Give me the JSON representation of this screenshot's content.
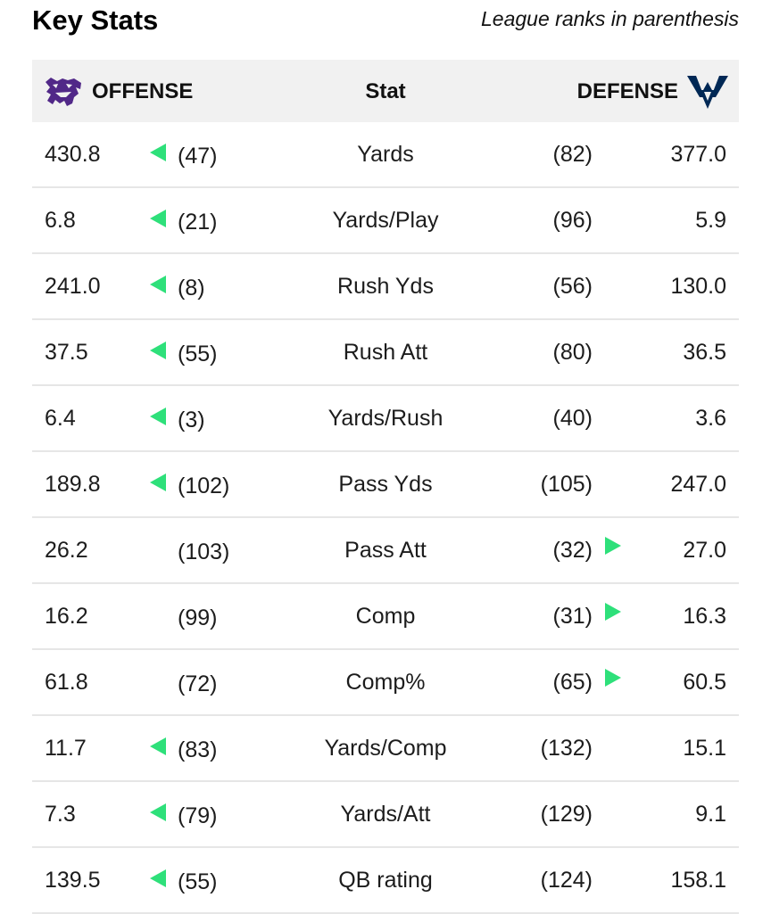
{
  "header": {
    "title": "Key Stats",
    "note": "League ranks in parenthesis"
  },
  "columns": {
    "offense": "OFFENSE",
    "stat": "Stat",
    "defense": "DEFENSE"
  },
  "colors": {
    "accent_arrow": "#2ee07a",
    "offense_brand": "#512888",
    "defense_brand": "#002855",
    "header_bg": "#f1f1f1"
  },
  "rows": [
    {
      "offense_value": "430.8",
      "offense_rank": "(47)",
      "stat": "Yards",
      "defense_rank": "(82)",
      "defense_value": "377.0",
      "advantage": "offense"
    },
    {
      "offense_value": "6.8",
      "offense_rank": "(21)",
      "stat": "Yards/Play",
      "defense_rank": "(96)",
      "defense_value": "5.9",
      "advantage": "offense"
    },
    {
      "offense_value": "241.0",
      "offense_rank": "(8)",
      "stat": "Rush Yds",
      "defense_rank": "(56)",
      "defense_value": "130.0",
      "advantage": "offense"
    },
    {
      "offense_value": "37.5",
      "offense_rank": "(55)",
      "stat": "Rush Att",
      "defense_rank": "(80)",
      "defense_value": "36.5",
      "advantage": "offense"
    },
    {
      "offense_value": "6.4",
      "offense_rank": "(3)",
      "stat": "Yards/Rush",
      "defense_rank": "(40)",
      "defense_value": "3.6",
      "advantage": "offense"
    },
    {
      "offense_value": "189.8",
      "offense_rank": "(102)",
      "stat": "Pass Yds",
      "defense_rank": "(105)",
      "defense_value": "247.0",
      "advantage": "offense"
    },
    {
      "offense_value": "26.2",
      "offense_rank": "(103)",
      "stat": "Pass Att",
      "defense_rank": "(32)",
      "defense_value": "27.0",
      "advantage": "defense"
    },
    {
      "offense_value": "16.2",
      "offense_rank": "(99)",
      "stat": "Comp",
      "defense_rank": "(31)",
      "defense_value": "16.3",
      "advantage": "defense"
    },
    {
      "offense_value": "61.8",
      "offense_rank": "(72)",
      "stat": "Comp%",
      "defense_rank": "(65)",
      "defense_value": "60.5",
      "advantage": "defense"
    },
    {
      "offense_value": "11.7",
      "offense_rank": "(83)",
      "stat": "Yards/Comp",
      "defense_rank": "(132)",
      "defense_value": "15.1",
      "advantage": "offense"
    },
    {
      "offense_value": "7.3",
      "offense_rank": "(79)",
      "stat": "Yards/Att",
      "defense_rank": "(129)",
      "defense_value": "9.1",
      "advantage": "offense"
    },
    {
      "offense_value": "139.5",
      "offense_rank": "(55)",
      "stat": "QB rating",
      "defense_rank": "(124)",
      "defense_value": "158.1",
      "advantage": "offense"
    }
  ]
}
